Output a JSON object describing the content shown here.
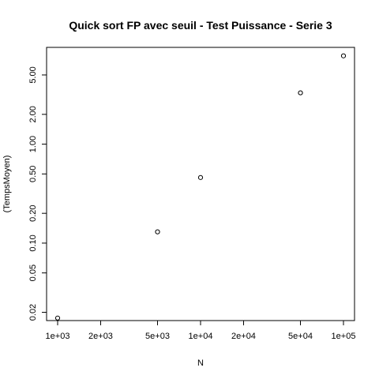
{
  "chart_data": {
    "type": "scatter",
    "title": "Quick sort FP avec seuil - Test Puissance - Serie 3",
    "xlabel": "N",
    "ylabel": "(TempsMoyen)",
    "x_scale": "log",
    "y_scale": "log",
    "xlim": [
      1000,
      100000
    ],
    "ylim": [
      0.0165,
      9.5
    ],
    "grid": false,
    "x_ticks": [
      {
        "value": 1000,
        "label": "1e+03"
      },
      {
        "value": 2000,
        "label": "2e+03"
      },
      {
        "value": 5000,
        "label": "5e+03"
      },
      {
        "value": 10000,
        "label": "1e+04"
      },
      {
        "value": 20000,
        "label": "2e+04"
      },
      {
        "value": 50000,
        "label": "5e+04"
      },
      {
        "value": 100000,
        "label": "1e+05"
      }
    ],
    "y_ticks": [
      {
        "value": 0.02,
        "label": "0.02"
      },
      {
        "value": 0.05,
        "label": "0.05"
      },
      {
        "value": 0.1,
        "label": "0.10"
      },
      {
        "value": 0.2,
        "label": "0.20"
      },
      {
        "value": 0.5,
        "label": "0.50"
      },
      {
        "value": 1,
        "label": "1.00"
      },
      {
        "value": 2,
        "label": "2.00"
      },
      {
        "value": 5,
        "label": "5.00"
      }
    ],
    "points": [
      {
        "x": 1000,
        "y": 0.0175
      },
      {
        "x": 5000,
        "y": 0.13
      },
      {
        "x": 10000,
        "y": 0.46
      },
      {
        "x": 50000,
        "y": 3.3
      },
      {
        "x": 100000,
        "y": 7.8
      }
    ]
  }
}
